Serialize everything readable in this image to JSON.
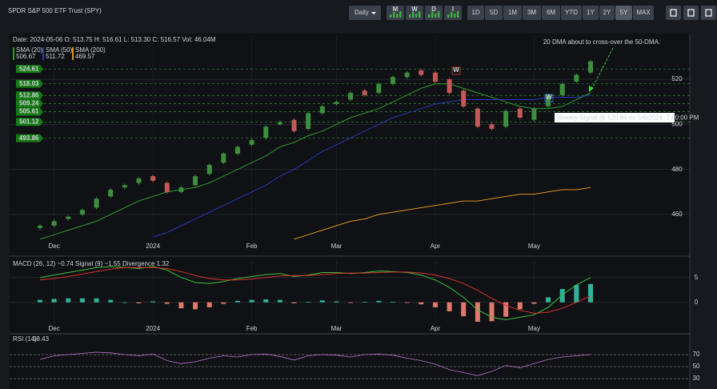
{
  "header": {
    "title": "SPDR S&P 500 ETF Trust (SPY)",
    "interval": "Daily",
    "signal_buttons": [
      "M",
      "W",
      "D",
      "I"
    ],
    "ranges": [
      "1D",
      "5D",
      "1M",
      "3M",
      "6M",
      "YTD",
      "1Y",
      "2Y",
      "5Y",
      "MAX"
    ],
    "active_range": "5Y"
  },
  "chart_data": [
    {
      "type": "candlestick",
      "info": "Date: 2024-05-06 O: 513.75 H: 516.61 L: 513.30 C: 516.57 Vol: 46.04M",
      "categories": [
        null,
        "Dec",
        null,
        null,
        null,
        null,
        null,
        null,
        "2024",
        null,
        null,
        null,
        null,
        null,
        null,
        "Feb",
        null,
        null,
        null,
        null,
        null,
        "Mar",
        null,
        null,
        null,
        null,
        null,
        null,
        "Apr",
        null,
        null,
        null,
        null,
        null,
        null,
        "May",
        null,
        null,
        null,
        null
      ],
      "open": [
        454,
        455,
        458,
        460,
        463,
        468,
        472,
        474,
        477,
        474,
        470,
        473,
        478,
        483,
        487,
        491,
        494,
        500,
        502,
        498,
        505,
        509,
        511,
        515,
        514,
        518,
        521,
        524,
        523,
        520,
        515,
        507,
        500,
        499,
        507,
        502,
        508,
        513,
        519,
        523
      ],
      "close": [
        455,
        457,
        459,
        462,
        467,
        471,
        473,
        476,
        475,
        470,
        472,
        477,
        482,
        487,
        490,
        493,
        499,
        501,
        497,
        505,
        508,
        510,
        514,
        513,
        518,
        521,
        523,
        522,
        519,
        514,
        508,
        499,
        498,
        506,
        503,
        507,
        513,
        518,
        522,
        528
      ],
      "up_color": "#3d8f3d",
      "down_color": "#c25a57",
      "series": [
        {
          "name": "SMA (20)",
          "color": "#2f9a2f",
          "last": 506.67,
          "values": [
            449,
            451,
            453,
            455,
            457,
            460,
            463,
            466,
            468,
            470,
            471,
            472,
            474,
            477,
            480,
            483,
            486,
            490,
            492,
            495,
            497,
            500,
            503,
            505,
            507,
            510,
            513,
            516,
            518,
            518,
            516,
            514,
            512,
            510,
            508,
            507,
            507,
            508,
            511,
            514
          ]
        },
        {
          "name": "SMA (50)",
          "color": "#2a36b8",
          "last": 511.72,
          "values": [
            null,
            null,
            null,
            null,
            null,
            null,
            null,
            null,
            450,
            452,
            455,
            458,
            461,
            464,
            467,
            470,
            473,
            477,
            480,
            484,
            488,
            491,
            494,
            497,
            500,
            503,
            505,
            507,
            509,
            510,
            511,
            511,
            511,
            511,
            511,
            511,
            512,
            512,
            512,
            513
          ]
        },
        {
          "name": "SMA (200)",
          "color": "#d89420",
          "last": 469.57,
          "values": [
            null,
            null,
            null,
            null,
            null,
            null,
            null,
            null,
            null,
            null,
            null,
            null,
            null,
            null,
            null,
            null,
            null,
            null,
            449,
            451,
            453,
            455,
            457,
            458,
            460,
            461,
            462,
            463,
            464,
            465,
            466,
            466,
            467,
            468,
            469,
            469,
            470,
            471,
            471,
            472
          ]
        }
      ],
      "levels": [
        524.61,
        518.03,
        512.86,
        509.24,
        505.61,
        501.12,
        493.86
      ],
      "ylim": [
        448.6,
        539.6
      ],
      "yticks": [
        460,
        480,
        500,
        520
      ],
      "grid": true,
      "annotation": "20 DMA about to cross-over the 50-DMA.",
      "signal_label": "Weekly Signal @ 520.84 on 5/6/2024, 7:00:00 PM",
      "markers": [
        "W",
        "W"
      ]
    },
    {
      "type": "macd",
      "title": "MACD (26, 12) ~0.74 Signal (9) ~1.55 Divergence 1.32",
      "categories": [
        null,
        "Dec",
        null,
        null,
        null,
        null,
        null,
        null,
        "2024",
        null,
        null,
        null,
        null,
        null,
        null,
        "Feb",
        null,
        null,
        null,
        null,
        null,
        "Mar",
        null,
        null,
        null,
        null,
        null,
        null,
        "Apr",
        null,
        null,
        null,
        null,
        null,
        null,
        "May",
        null,
        null,
        null,
        null
      ],
      "series": [
        {
          "color": "#3fbf3f",
          "values": [
            5,
            5.5,
            6,
            6.5,
            7,
            7.2,
            7,
            6.8,
            7.2,
            6.5,
            5,
            4,
            3.8,
            4.2,
            4.8,
            5.2,
            5.6,
            5.8,
            5.2,
            5.5,
            6,
            6,
            5.8,
            6,
            6.3,
            6.2,
            6,
            5.5,
            4.5,
            3,
            1,
            -1.5,
            -3,
            -3.5,
            -3,
            -2.5,
            -1,
            1.5,
            3.5,
            5
          ]
        },
        {
          "color": "#d9322c",
          "values": [
            4.5,
            4.8,
            5.2,
            5.7,
            6.2,
            6.7,
            7,
            7,
            7,
            6.8,
            6.2,
            5.4,
            4.8,
            4.5,
            4.5,
            4.7,
            5,
            5.3,
            5.4,
            5.4,
            5.6,
            5.8,
            5.9,
            5.9,
            6,
            6.1,
            6.1,
            5.9,
            5.5,
            4.8,
            3.8,
            2.4,
            0.8,
            -0.6,
            -1.6,
            -2.2,
            -2,
            -1.2,
            0,
            1.3
          ]
        }
      ],
      "bars": {
        "up_color": "#2fb39a",
        "down_color": "#e07a6e",
        "values": [
          0.5,
          0.7,
          0.8,
          0.8,
          0.8,
          0.5,
          0,
          -0.2,
          0.2,
          -0.3,
          -1.2,
          -1.4,
          -1,
          -0.3,
          0.3,
          0.5,
          0.6,
          0.5,
          -0.2,
          0.1,
          0.4,
          0.2,
          -0.1,
          0.1,
          0.3,
          0.1,
          -0.1,
          -0.4,
          -1,
          -1.8,
          -2.8,
          -3.9,
          -3.8,
          -2.9,
          -1.4,
          -0.3,
          1,
          2.7,
          3.5,
          3.7
        ]
      },
      "ylim": [
        -5.2,
        8.5
      ],
      "yticks": [
        5,
        0
      ]
    },
    {
      "type": "line",
      "title": "RSI (14)",
      "last": 58.43,
      "series": [
        {
          "color": "#b477c8",
          "values": [
            62,
            68,
            70,
            72,
            74,
            73,
            70,
            68,
            71,
            60,
            55,
            58,
            64,
            68,
            66,
            70,
            71,
            67,
            61,
            68,
            70,
            69,
            66,
            70,
            71,
            69,
            64,
            60,
            54,
            45,
            40,
            35,
            42,
            52,
            48,
            55,
            62,
            66,
            68,
            70
          ]
        }
      ],
      "ylim": [
        12.7,
        100.7
      ],
      "yticks": [
        70,
        50,
        30
      ]
    }
  ]
}
